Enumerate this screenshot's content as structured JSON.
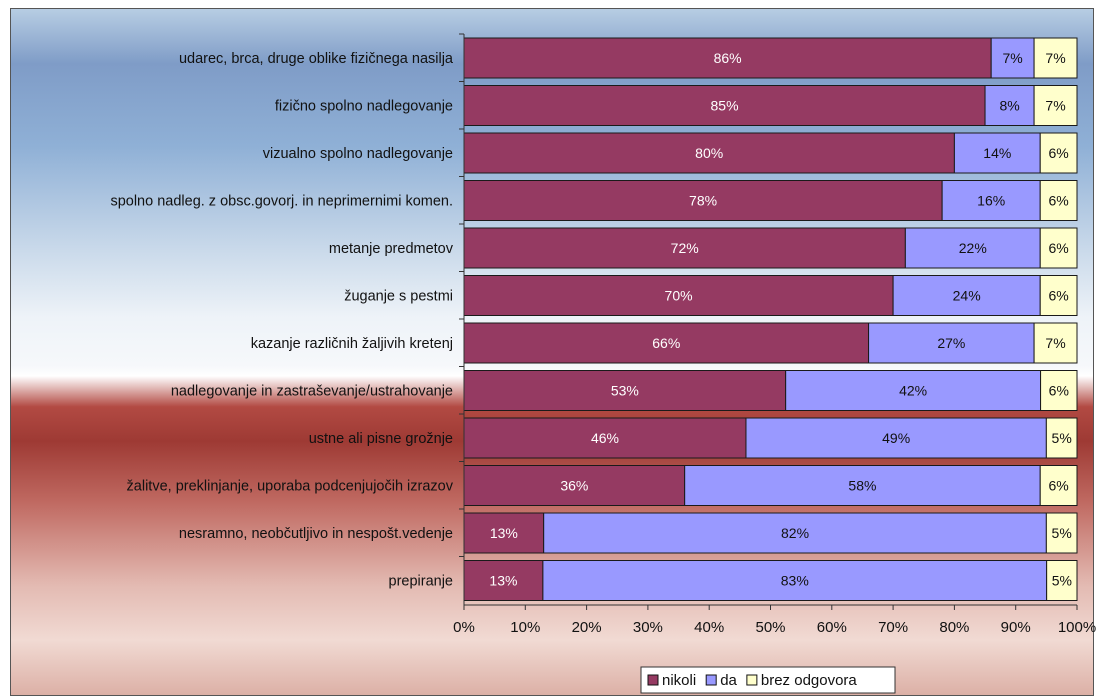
{
  "chart_data": {
    "type": "bar",
    "orientation": "horizontal",
    "stacked": "percent",
    "categories": [
      "udarec, brca, druge oblike fizičnega nasilja",
      "fizično spolno nadlegovanje",
      "vizualno spolno nadlegovanje",
      "spolno nadleg. z obsc.govorj. in neprimernimi komen.",
      "metanje predmetov",
      "žuganje s pestmi",
      "kazanje različnih žaljivih kretenj",
      "nadlegovanje in zastraševanje/ustrahovanje",
      "ustne ali pisne grožnje",
      "žalitve, preklinjanje, uporaba podcenjujočih izrazov",
      "nesramno, neobčutljivo in nespošt.vedenje",
      "prepiranje"
    ],
    "series": [
      {
        "name": "nikoli",
        "color": "#953a62",
        "values": [
          86,
          85,
          80,
          78,
          72,
          70,
          66,
          53,
          46,
          36,
          13,
          13
        ],
        "labels": [
          "86%",
          "85%",
          "80%",
          "78%",
          "72%",
          "70%",
          "66%",
          "53%",
          "46%",
          "36%",
          "13%",
          "13%"
        ]
      },
      {
        "name": "da",
        "color": "#9999ff",
        "values": [
          7,
          8,
          14,
          16,
          22,
          24,
          27,
          42,
          49,
          58,
          82,
          83
        ],
        "labels": [
          "7%",
          "8%",
          "14%",
          "16%",
          "22%",
          "24%",
          "27%",
          "42%",
          "49%",
          "58%",
          "82%",
          "83%"
        ]
      },
      {
        "name": "brez odgovora",
        "color": "#ffffcc",
        "values": [
          7,
          7,
          6,
          6,
          6,
          6,
          7,
          6,
          5,
          6,
          5,
          5
        ],
        "labels": [
          "7%",
          "7%",
          "6%",
          "6%",
          "6%",
          "6%",
          "7%",
          "6%",
          "5%",
          "6%",
          "5%",
          "5%"
        ]
      }
    ],
    "xlim": [
      0,
      100
    ],
    "xticks": [
      "0%",
      "10%",
      "20%",
      "30%",
      "40%",
      "50%",
      "60%",
      "70%",
      "80%",
      "90%",
      "100%"
    ],
    "title": "",
    "xlabel": "",
    "ylabel": "",
    "grid": false,
    "legend": "bottom-right"
  }
}
